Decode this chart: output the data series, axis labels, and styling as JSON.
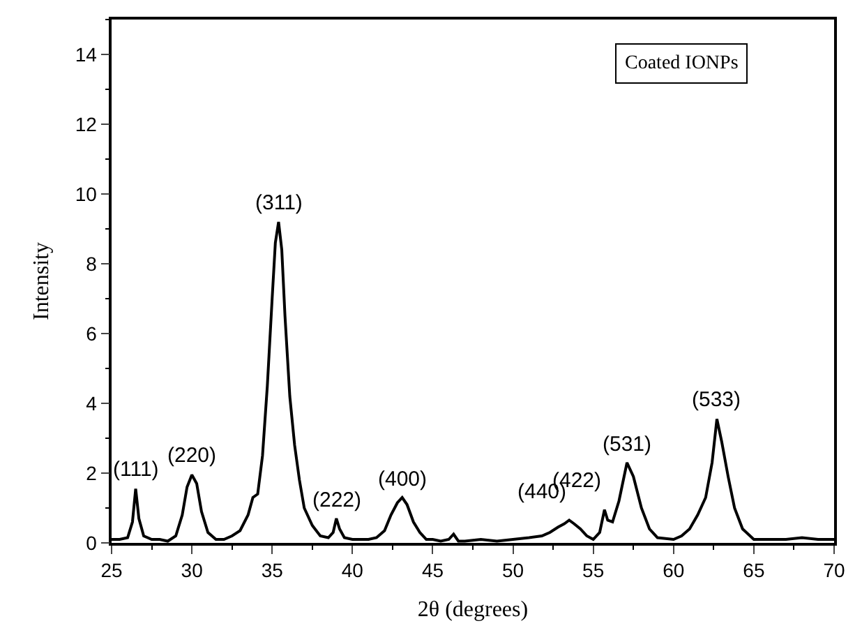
{
  "chart_data": {
    "type": "line",
    "xlabel": "2θ (degrees)",
    "ylabel": "Intensity",
    "x": [
      25,
      25.5,
      26,
      26.3,
      26.5,
      26.7,
      27,
      27.5,
      28,
      28.5,
      29,
      29.4,
      29.7,
      30,
      30.3,
      30.6,
      31,
      31.5,
      32,
      32.5,
      33,
      33.5,
      33.8,
      34.1,
      34.4,
      34.7,
      35,
      35.2,
      35.4,
      35.6,
      35.8,
      36.1,
      36.4,
      36.7,
      37,
      37.5,
      38,
      38.5,
      38.8,
      39,
      39.2,
      39.5,
      40,
      40.5,
      41,
      41.5,
      42,
      42.4,
      42.8,
      43.1,
      43.4,
      43.8,
      44.2,
      44.6,
      45,
      45.5,
      46,
      46.3,
      46.6,
      47,
      48,
      49,
      50,
      51,
      51.8,
      52.3,
      52.8,
      53.2,
      53.5,
      53.8,
      54.2,
      54.6,
      55,
      55.4,
      55.7,
      55.9,
      56.2,
      56.6,
      57.1,
      57.5,
      58,
      58.5,
      59,
      60,
      60.5,
      61,
      61.5,
      62,
      62.4,
      62.7,
      63,
      63.4,
      63.8,
      64.3,
      65,
      66,
      67,
      68,
      69,
      70
    ],
    "series": [
      {
        "color": "#000000",
        "values": [
          0.1,
          0.1,
          0.15,
          0.6,
          1.55,
          0.7,
          0.2,
          0.1,
          0.1,
          0.05,
          0.2,
          0.8,
          1.6,
          1.95,
          1.7,
          0.9,
          0.3,
          0.1,
          0.1,
          0.2,
          0.35,
          0.8,
          1.3,
          1.4,
          2.5,
          4.5,
          7.0,
          8.6,
          9.2,
          8.4,
          6.5,
          4.2,
          2.8,
          1.8,
          1.0,
          0.5,
          0.2,
          0.15,
          0.3,
          0.7,
          0.4,
          0.15,
          0.1,
          0.1,
          0.1,
          0.15,
          0.35,
          0.8,
          1.15,
          1.3,
          1.1,
          0.6,
          0.3,
          0.1,
          0.1,
          0.05,
          0.1,
          0.25,
          0.05,
          0.05,
          0.1,
          0.05,
          0.1,
          0.15,
          0.2,
          0.3,
          0.45,
          0.55,
          0.65,
          0.55,
          0.4,
          0.2,
          0.1,
          0.3,
          0.95,
          0.65,
          0.6,
          1.2,
          2.3,
          1.9,
          1.0,
          0.4,
          0.15,
          0.1,
          0.2,
          0.4,
          0.8,
          1.3,
          2.3,
          3.55,
          2.9,
          1.9,
          1.0,
          0.4,
          0.1,
          0.1,
          0.1,
          0.15,
          0.1,
          0.1
        ]
      }
    ],
    "annotations": [
      {
        "text": "(111)",
        "x": 26.5,
        "y": 1.55
      },
      {
        "text": "(220)",
        "x": 30.0,
        "y": 1.95
      },
      {
        "text": "(311)",
        "x": 35.4,
        "y": 9.2
      },
      {
        "text": "(222)",
        "x": 39.0,
        "y": 0.7
      },
      {
        "text": "(400)",
        "x": 43.1,
        "y": 1.3
      },
      {
        "text": "(440)",
        "x": 53.5,
        "y": 0.65
      },
      {
        "text": "(422)",
        "x": 55.7,
        "y": 0.95
      },
      {
        "text": "(531)",
        "x": 57.1,
        "y": 2.3
      },
      {
        "text": "(533)",
        "x": 62.7,
        "y": 3.55
      },
      "Coated IONPs"
    ],
    "xlim": [
      25,
      70
    ],
    "xticks": [
      25,
      30,
      35,
      40,
      45,
      50,
      55,
      60,
      65,
      70
    ],
    "ylim": [
      0,
      15
    ],
    "yticks": [
      0,
      2,
      4,
      6,
      8,
      10,
      12,
      14
    ],
    "marker": "none",
    "line_style": "solid"
  }
}
